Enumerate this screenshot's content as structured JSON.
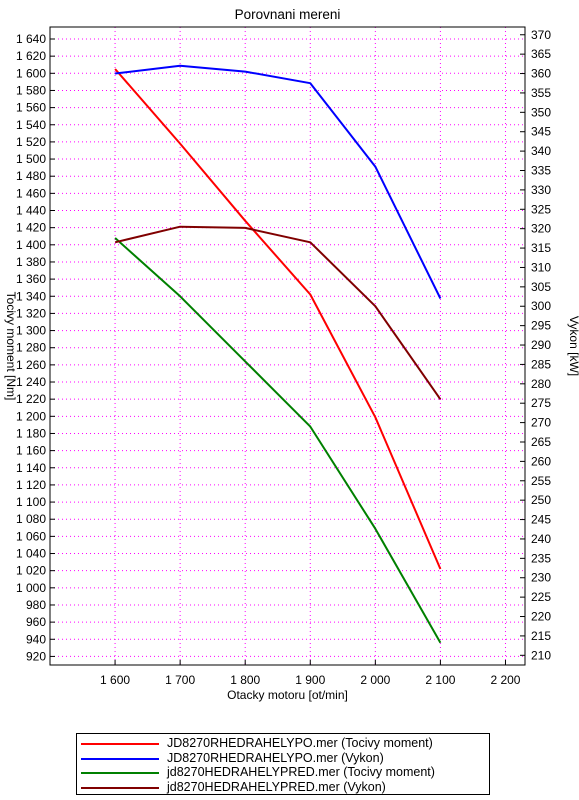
{
  "colors": {
    "series_red": "#ff0000",
    "series_blue": "#0000ff",
    "series_green": "#008000",
    "series_darkred": "#800000",
    "grid": "#ff00ff"
  },
  "chart_data": {
    "type": "line",
    "title": "Porovnani mereni",
    "xlabel": "Otacky motoru [ot/min]",
    "ylabel_left": "Tocivy moment [Nm]",
    "ylabel_right": "Vykon [kW]",
    "xlim": [
      1500,
      2230
    ],
    "ylim_left": [
      910,
      1654
    ],
    "ylim_right": [
      207.5,
      372
    ],
    "grid": true,
    "legend_position": "bottom",
    "x_ticks": [
      1600,
      1700,
      1800,
      1900,
      2000,
      2100,
      2200
    ],
    "x_tick_labels": [
      "1 600",
      "1 700",
      "1 800",
      "1 900",
      "2 000",
      "2 100",
      "2 200"
    ],
    "y_left_ticks": [
      920,
      940,
      960,
      980,
      1000,
      1020,
      1040,
      1060,
      1080,
      1100,
      1120,
      1140,
      1160,
      1180,
      1200,
      1220,
      1240,
      1260,
      1280,
      1300,
      1320,
      1340,
      1360,
      1380,
      1400,
      1420,
      1440,
      1460,
      1480,
      1500,
      1520,
      1540,
      1560,
      1580,
      1600,
      1620,
      1640
    ],
    "y_left_tick_labels": [
      "920",
      "940",
      "960",
      "980",
      "1 000",
      "1 020",
      "1 040",
      "1 060",
      "1 080",
      "1 100",
      "1 120",
      "1 140",
      "1 160",
      "1 180",
      "1 200",
      "1 220",
      "1 240",
      "1 260",
      "1 280",
      "1 300",
      "1 320",
      "1 340",
      "1 360",
      "1 380",
      "1 400",
      "1 420",
      "1 440",
      "1 460",
      "1 480",
      "1 500",
      "1 520",
      "1 540",
      "1 560",
      "1 580",
      "1 600",
      "1 620",
      "1 640"
    ],
    "y_right_ticks": [
      210,
      215,
      220,
      225,
      230,
      235,
      240,
      245,
      250,
      255,
      260,
      265,
      270,
      275,
      280,
      285,
      290,
      295,
      300,
      305,
      310,
      315,
      320,
      325,
      330,
      335,
      340,
      345,
      350,
      355,
      360,
      365,
      370
    ],
    "y_right_tick_labels": [
      "210",
      "215",
      "220",
      "225",
      "230",
      "235",
      "240",
      "245",
      "250",
      "255",
      "260",
      "265",
      "270",
      "275",
      "280",
      "285",
      "290",
      "295",
      "300",
      "305",
      "310",
      "315",
      "320",
      "325",
      "330",
      "335",
      "340",
      "345",
      "350",
      "355",
      "360",
      "365",
      "370"
    ],
    "series": [
      {
        "name": "JD8270RHEDRAHELYPO.mer  (Tocivy moment)",
        "axis": "left",
        "color": "#ff0000",
        "x": [
          1600,
          1700,
          1800,
          1900,
          2000,
          2100
        ],
        "values": [
          1605,
          1518,
          1428,
          1342,
          1199,
          1022
        ]
      },
      {
        "name": "JD8270RHEDRAHELYPO.mer  (Vykon)",
        "axis": "right",
        "color": "#0000ff",
        "x": [
          1600,
          1700,
          1800,
          1900,
          2000,
          2100
        ],
        "values": [
          360,
          362,
          360.5,
          357.5,
          336,
          302
        ]
      },
      {
        "name": "jd8270HEDRAHELYPRED.mer  (Tocivy moment)",
        "axis": "left",
        "color": "#008000",
        "x": [
          1600,
          1700,
          1800,
          1900,
          2000,
          2100
        ],
        "values": [
          1408,
          1340,
          1264,
          1188,
          1069,
          936
        ]
      },
      {
        "name": "jd8270HEDRAHELYPRED.mer  (Vykon)",
        "axis": "right",
        "color": "#800000",
        "x": [
          1600,
          1700,
          1800,
          1900,
          2000,
          2100
        ],
        "values": [
          316.5,
          320.5,
          320.2,
          316.5,
          300,
          276
        ]
      }
    ]
  }
}
